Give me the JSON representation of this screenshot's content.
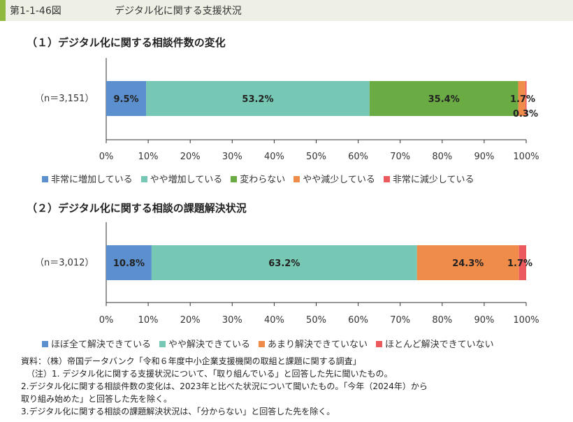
{
  "header": {
    "figure_number": "第1-1-46図",
    "figure_title": "デジタル化に関する支援状況"
  },
  "colors": {
    "header_bg": "#eef0e6",
    "header_accent": "#8fb93e",
    "blue": "#5b8fce",
    "teal": "#76c7b3",
    "green": "#6aab44",
    "orange": "#ef8c49",
    "red": "#ec5a5e"
  },
  "chart_data": [
    {
      "type": "bar",
      "orientation": "horizontal-stacked",
      "title": "（１）デジタル化に関する相談件数の変化",
      "category_label": "（n＝3,151）",
      "x_ticks": [
        "0%",
        "10%",
        "20%",
        "30%",
        "40%",
        "50%",
        "60%",
        "70%",
        "80%",
        "90%",
        "100%"
      ],
      "xlim": [
        0,
        100
      ],
      "series": [
        {
          "name": "非常に増加している",
          "value": 9.5,
          "label": "9.5%",
          "color": "#5b8fce"
        },
        {
          "name": "やや増加している",
          "value": 53.2,
          "label": "53.2%",
          "color": "#76c7b3"
        },
        {
          "name": "変わらない",
          "value": 35.4,
          "label": "35.4%",
          "color": "#6aab44"
        },
        {
          "name": "やや減少している",
          "value": 1.7,
          "label": "1.7%",
          "color": "#ef8c49"
        },
        {
          "name": "非常に減少している",
          "value": 0.3,
          "label": "0.3%",
          "color": "#ec5a5e"
        }
      ]
    },
    {
      "type": "bar",
      "orientation": "horizontal-stacked",
      "title": "（２）デジタル化に関する相談の課題解決状況",
      "category_label": "（n＝3,012）",
      "x_ticks": [
        "0%",
        "10%",
        "20%",
        "30%",
        "40%",
        "50%",
        "60%",
        "70%",
        "80%",
        "90%",
        "100%"
      ],
      "xlim": [
        0,
        100
      ],
      "series": [
        {
          "name": "ほぼ全て解決できている",
          "value": 10.8,
          "label": "10.8%",
          "color": "#5b8fce"
        },
        {
          "name": "やや解決できている",
          "value": 63.2,
          "label": "63.2%",
          "color": "#76c7b3"
        },
        {
          "name": "あまり解決できていない",
          "value": 24.3,
          "label": "24.3%",
          "color": "#ef8c49"
        },
        {
          "name": "ほとんど解決できていない",
          "value": 1.7,
          "label": "1.7%",
          "color": "#ec5a5e"
        }
      ]
    }
  ],
  "notes": [
    "資料：（株）帝国データバンク「令和６年度中小企業支援機関の取組と課題に関する調査」",
    "（注）1. デジタル化に関する支援状況について、「取り組んでいる」と回答した先に聞いたもの。",
    "2.デジタル化に関する相談件数の変化は、2023年と比べた状況について聞いたもの。「今年（2024年）から",
    "取り組み始めた」と回答した先を除く。",
    "3.デジタル化に関する相談の課題解決状況は、「分からない」と回答した先を除く。"
  ]
}
